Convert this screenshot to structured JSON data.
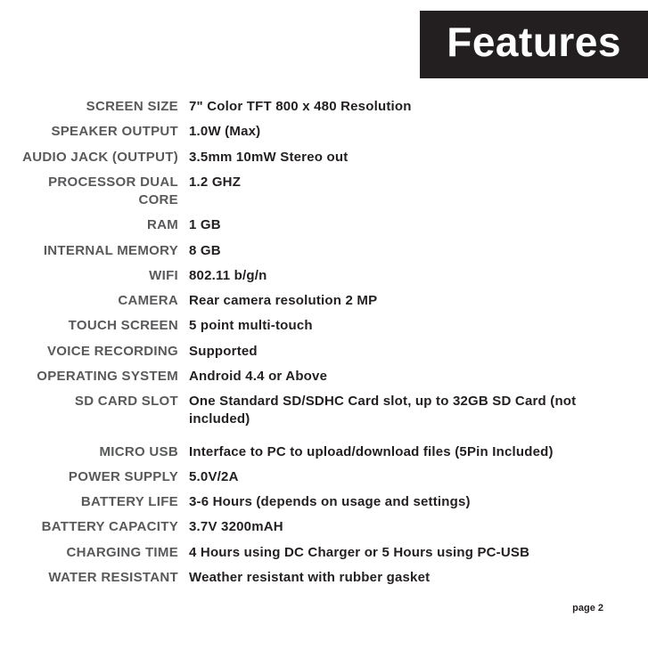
{
  "header": {
    "title": "Features"
  },
  "specs": [
    {
      "label": "SCREEN  SIZE",
      "value": "7\" Color TFT 800 x 480 Resolution"
    },
    {
      "label": "SPEAKER OUTPUT",
      "value": "1.0W (Max)"
    },
    {
      "label": "AUDIO JACK (OUTPUT)",
      "value": "3.5mm 10mW Stereo out"
    },
    {
      "label": "PROCESSOR DUAL CORE",
      "value": "1.2 GHZ"
    },
    {
      "label": "RAM",
      "value": "1 GB"
    },
    {
      "label": "INTERNAL MEMORY",
      "value": "8 GB"
    },
    {
      "label": "WIFI",
      "value": "802.11 b/g/n"
    },
    {
      "label": "CAMERA",
      "value": "Rear camera resolution 2 MP"
    },
    {
      "label": "TOUCH SCREEN",
      "value": "5 point multi-touch"
    },
    {
      "label": "VOICE RECORDING",
      "value": "Supported"
    },
    {
      "label": "OPERATING SYSTEM",
      "value": "Android 4.4 or Above"
    },
    {
      "label": "SD CARD SLOT",
      "value": "One Standard SD/SDHC Card slot, up to 32GB SD Card (not included)"
    },
    {
      "label": "MICRO USB",
      "value": "Interface to PC to upload/download files (5Pin Included)",
      "gapBefore": true
    },
    {
      "label": "POWER SUPPLY",
      "value": "5.0V/2A"
    },
    {
      "label": "BATTERY LIFE",
      "value": "3-6 Hours (depends on usage and settings)"
    },
    {
      "label": "BATTERY CAPACITY",
      "value": "3.7V 3200mAH"
    },
    {
      "label": "CHARGING TIME",
      "value": "4 Hours using DC Charger or 5 Hours using PC-USB"
    },
    {
      "label": "WATER RESISTANT",
      "value": "Weather resistant with rubber gasket"
    }
  ],
  "footer": {
    "page": "page 2"
  }
}
